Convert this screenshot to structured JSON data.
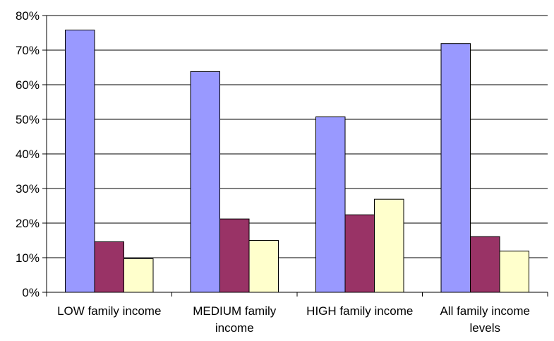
{
  "chart_data": {
    "type": "bar",
    "categories": [
      [
        "LOW family income"
      ],
      [
        "MEDIUM family",
        "income"
      ],
      [
        "HIGH family income"
      ],
      [
        "All family income",
        "levels"
      ]
    ],
    "series": [
      {
        "color": "#9999FF",
        "values": [
          75.8,
          63.8,
          50.7,
          71.9
        ]
      },
      {
        "color": "#993366",
        "values": [
          14.6,
          21.2,
          22.4,
          16.1
        ]
      },
      {
        "color": "#FFFFCC",
        "values": [
          9.7,
          15.0,
          26.9,
          11.9
        ]
      }
    ],
    "ylim": [
      0,
      80
    ],
    "yticks": [
      0,
      10,
      20,
      30,
      40,
      50,
      60,
      70,
      80
    ],
    "ytick_format": "percent",
    "grid": true,
    "title": "",
    "xlabel": "",
    "ylabel": ""
  }
}
